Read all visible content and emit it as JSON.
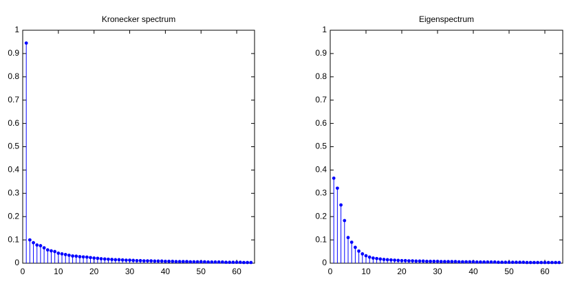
{
  "chart_data": [
    {
      "type": "stem",
      "title": "Kronecker spectrum",
      "color": "#0000ff",
      "x": [
        1,
        2,
        3,
        4,
        5,
        6,
        7,
        8,
        9,
        10,
        11,
        12,
        13,
        14,
        15,
        16,
        17,
        18,
        19,
        20,
        21,
        22,
        23,
        24,
        25,
        26,
        27,
        28,
        29,
        30,
        31,
        32,
        33,
        34,
        35,
        36,
        37,
        38,
        39,
        40,
        41,
        42,
        43,
        44,
        45,
        46,
        47,
        48,
        49,
        50,
        51,
        52,
        53,
        54,
        55,
        56,
        57,
        58,
        59,
        60,
        61,
        62,
        63,
        64
      ],
      "values": [
        0.945,
        0.1,
        0.088,
        0.078,
        0.075,
        0.066,
        0.057,
        0.053,
        0.05,
        0.043,
        0.04,
        0.037,
        0.034,
        0.031,
        0.03,
        0.028,
        0.027,
        0.026,
        0.024,
        0.022,
        0.021,
        0.019,
        0.018,
        0.017,
        0.016,
        0.015,
        0.015,
        0.014,
        0.013,
        0.013,
        0.012,
        0.011,
        0.011,
        0.01,
        0.01,
        0.01,
        0.009,
        0.009,
        0.009,
        0.008,
        0.008,
        0.008,
        0.007,
        0.007,
        0.007,
        0.007,
        0.006,
        0.006,
        0.006,
        0.006,
        0.006,
        0.005,
        0.005,
        0.005,
        0.005,
        0.005,
        0.004,
        0.004,
        0.004,
        0.004,
        0.004,
        0.003,
        0.003,
        0.003
      ],
      "xlim": [
        0,
        65
      ],
      "xticks": [
        0,
        10,
        20,
        30,
        40,
        50,
        60
      ],
      "ylim": [
        0,
        1
      ],
      "yticks": [
        0,
        0.1,
        0.2,
        0.3,
        0.4,
        0.5,
        0.6,
        0.7,
        0.8,
        0.9,
        1
      ]
    },
    {
      "type": "stem",
      "title": "Eigenspectrum",
      "color": "#0000ff",
      "x": [
        1,
        2,
        3,
        4,
        5,
        6,
        7,
        8,
        9,
        10,
        11,
        12,
        13,
        14,
        15,
        16,
        17,
        18,
        19,
        20,
        21,
        22,
        23,
        24,
        25,
        26,
        27,
        28,
        29,
        30,
        31,
        32,
        33,
        34,
        35,
        36,
        37,
        38,
        39,
        40,
        41,
        42,
        43,
        44,
        45,
        46,
        47,
        48,
        49,
        50,
        51,
        52,
        53,
        54,
        55,
        56,
        57,
        58,
        59,
        60,
        61,
        62,
        63,
        64
      ],
      "values": [
        0.365,
        0.322,
        0.25,
        0.183,
        0.11,
        0.09,
        0.068,
        0.052,
        0.04,
        0.032,
        0.026,
        0.022,
        0.02,
        0.018,
        0.016,
        0.015,
        0.014,
        0.013,
        0.012,
        0.011,
        0.011,
        0.01,
        0.01,
        0.009,
        0.009,
        0.009,
        0.008,
        0.008,
        0.008,
        0.008,
        0.007,
        0.007,
        0.007,
        0.007,
        0.007,
        0.006,
        0.006,
        0.006,
        0.006,
        0.006,
        0.005,
        0.005,
        0.005,
        0.005,
        0.005,
        0.005,
        0.004,
        0.004,
        0.004,
        0.004,
        0.004,
        0.004,
        0.004,
        0.004,
        0.003,
        0.003,
        0.003,
        0.003,
        0.003,
        0.003,
        0.003,
        0.003,
        0.003,
        0.003
      ],
      "xlim": [
        0,
        65
      ],
      "xticks": [
        0,
        10,
        20,
        30,
        40,
        50,
        60
      ],
      "ylim": [
        0,
        1
      ],
      "yticks": [
        0,
        0.1,
        0.2,
        0.3,
        0.4,
        0.5,
        0.6,
        0.7,
        0.8,
        0.9,
        1
      ]
    }
  ]
}
